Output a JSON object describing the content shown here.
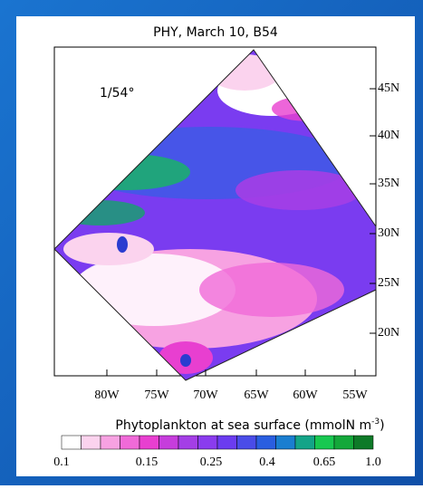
{
  "title": "PHY, March 10, B54",
  "annotation": "1/54°",
  "lat_labels": [
    "45N",
    "40N",
    "35N",
    "30N",
    "25N",
    "20N"
  ],
  "lon_labels": [
    "80W",
    "75W",
    "70W",
    "65W",
    "60W",
    "55W"
  ],
  "colorbar": {
    "label": "Phytoplankton at sea surface (mmolN m",
    "label_sup": "-3",
    "label_end": ")",
    "ticks": [
      "0.1",
      "0.15",
      "0.25",
      "0.4",
      "0.65",
      "1.0"
    ],
    "colors": [
      "#ffffff",
      "#fbd3ee",
      "#f7a2e2",
      "#f06ad8",
      "#e83fd0",
      "#c63ddc",
      "#a43ee6",
      "#8a3cee",
      "#6b3cf0",
      "#4a4ce8",
      "#2a5ee0",
      "#1a7ed0",
      "#14a488",
      "#18c850",
      "#14a83a",
      "#0e7a28"
    ]
  }
}
